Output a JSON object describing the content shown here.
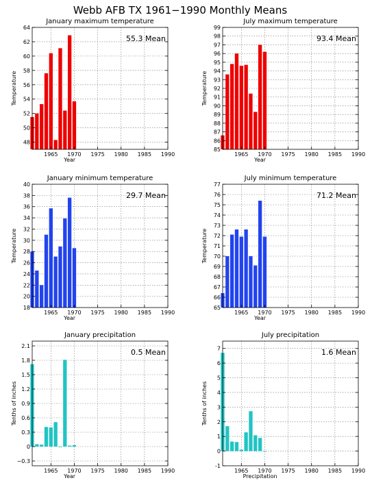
{
  "figure": {
    "title": "Webb AFB TX  1961−1990 Monthly Means",
    "mean_suffix": "Mean"
  },
  "chart_data": [
    {
      "id": "jan-max",
      "type": "bar",
      "title": "January maximum temperature",
      "xlabel": "Year",
      "ylabel": "Temperature",
      "mean": "55.3",
      "color": "#ee0000",
      "x": [
        1961,
        1962,
        1963,
        1964,
        1965,
        1966,
        1967,
        1968,
        1969,
        1970
      ],
      "values": [
        51.5,
        52.0,
        53.3,
        57.6,
        60.4,
        48.3,
        61.1,
        52.4,
        62.9,
        53.7
      ],
      "xlim": [
        1961,
        1990
      ],
      "ylim": [
        47,
        64
      ],
      "yticks": [
        48,
        50,
        52,
        54,
        56,
        58,
        60,
        62,
        64
      ],
      "xticks": [
        1965,
        1970,
        1975,
        1980,
        1985,
        1990
      ],
      "grid": true
    },
    {
      "id": "jul-max",
      "type": "bar",
      "title": "July maximum temperature",
      "xlabel": "Year",
      "ylabel": "Temperature",
      "mean": "93.4",
      "color": "#ee0000",
      "x": [
        1961,
        1962,
        1963,
        1964,
        1965,
        1966,
        1967,
        1968,
        1969,
        1970
      ],
      "values": [
        86.6,
        93.6,
        94.8,
        96.0,
        94.6,
        94.7,
        91.4,
        89.3,
        97.0,
        96.2
      ],
      "xlim": [
        1961,
        1990
      ],
      "ylim": [
        85,
        99
      ],
      "yticks": [
        85,
        86,
        87,
        88,
        89,
        90,
        91,
        92,
        93,
        94,
        95,
        96,
        97,
        98,
        99
      ],
      "xticks": [
        1965,
        1970,
        1975,
        1980,
        1985,
        1990
      ],
      "grid": true
    },
    {
      "id": "jan-min",
      "type": "bar",
      "title": "January minimum temperature",
      "xlabel": "Year",
      "ylabel": "Temperature",
      "mean": "29.7",
      "color": "#2244ee",
      "x": [
        1961,
        1962,
        1963,
        1964,
        1965,
        1966,
        1967,
        1968,
        1969,
        1970
      ],
      "values": [
        28.0,
        24.6,
        22.0,
        31.0,
        35.7,
        27.1,
        28.9,
        33.9,
        37.6,
        28.6
      ],
      "xlim": [
        1961,
        1990
      ],
      "ylim": [
        18,
        40
      ],
      "yticks": [
        18,
        20,
        22,
        24,
        26,
        28,
        30,
        32,
        34,
        36,
        38,
        40
      ],
      "xticks": [
        1965,
        1970,
        1975,
        1980,
        1985,
        1990
      ],
      "grid": true
    },
    {
      "id": "jul-min",
      "type": "bar",
      "title": "July minimum temperature",
      "xlabel": "Year",
      "ylabel": "Temperature",
      "mean": "71.2",
      "color": "#2244ee",
      "x": [
        1961,
        1962,
        1963,
        1964,
        1965,
        1966,
        1967,
        1968,
        1969,
        1970
      ],
      "values": [
        66.4,
        70.0,
        72.1,
        72.6,
        71.9,
        72.6,
        70.0,
        69.1,
        75.4,
        71.9
      ],
      "xlim": [
        1961,
        1990
      ],
      "ylim": [
        65,
        77
      ],
      "yticks": [
        65,
        66,
        67,
        68,
        69,
        70,
        71,
        72,
        73,
        74,
        75,
        76,
        77
      ],
      "xticks": [
        1965,
        1970,
        1975,
        1980,
        1985,
        1990
      ],
      "grid": true
    },
    {
      "id": "jan-precip",
      "type": "bar",
      "title": "January precipitation",
      "xlabel": "Year",
      "ylabel": "Tenths of inches",
      "mean": "0.5",
      "color": "#22c4c4",
      "x": [
        1961,
        1962,
        1963,
        1964,
        1965,
        1966,
        1967,
        1968,
        1969,
        1970
      ],
      "values": [
        1.72,
        0.05,
        0.04,
        0.41,
        0.4,
        0.51,
        0.0,
        1.81,
        0.02,
        0.03
      ],
      "xlim": [
        1961,
        1990
      ],
      "ylim": [
        -0.4,
        2.2
      ],
      "yticks": [
        -0.3,
        0,
        0.3,
        0.6,
        0.9,
        1.2,
        1.5,
        1.8,
        2.1
      ],
      "yticklabels": [
        "−0.3",
        "0",
        "0.3",
        "0.6",
        "0.9",
        "1.2",
        "1.5",
        "1.8",
        "2.1"
      ],
      "xticks": [
        1965,
        1970,
        1975,
        1980,
        1985,
        1990
      ],
      "grid": true
    },
    {
      "id": "jul-precip",
      "type": "bar",
      "title": "July precipitation",
      "xlabel": "Precipitation",
      "ylabel": "Tenths of inches",
      "mean": "1.6",
      "color": "#22c4c4",
      "x": [
        1961,
        1962,
        1963,
        1964,
        1965,
        1966,
        1967,
        1968,
        1969,
        1970
      ],
      "values": [
        6.7,
        1.7,
        0.65,
        0.62,
        0.1,
        1.28,
        2.72,
        1.08,
        0.9,
        0.0
      ],
      "xlim": [
        1961,
        1990
      ],
      "ylim": [
        -1,
        7.5
      ],
      "yticks": [
        -1,
        0,
        1,
        2,
        3,
        4,
        5,
        6,
        7
      ],
      "xticks": [
        1965,
        1970,
        1975,
        1980,
        1985,
        1990
      ],
      "grid": true
    }
  ]
}
